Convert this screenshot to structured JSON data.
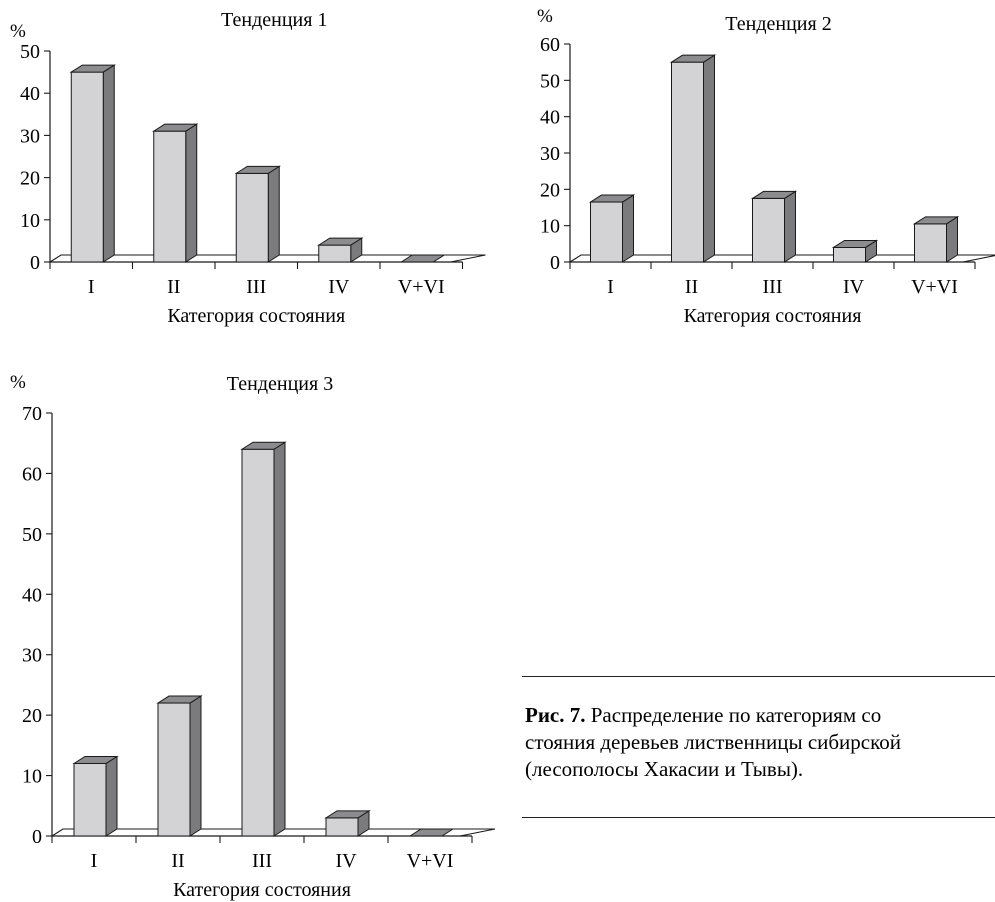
{
  "chart_data": [
    {
      "type": "bar",
      "title": "Тенденция 1",
      "ylabel": "%",
      "xlabel": "Категория состояния",
      "categories": [
        "I",
        "II",
        "III",
        "IV",
        "V+VI"
      ],
      "values": [
        45,
        31,
        21,
        4,
        0
      ],
      "ylim": [
        0,
        50
      ],
      "yticks": [
        "0",
        "10",
        "20",
        "30",
        "40",
        "50"
      ],
      "grid": false,
      "legend": "none"
    },
    {
      "type": "bar",
      "title": "Тенденция 2",
      "ylabel": "%",
      "xlabel": "Категория состояния",
      "categories": [
        "I",
        "II",
        "III",
        "IV",
        "V+VI"
      ],
      "values": [
        16.5,
        55,
        17.5,
        4,
        10.5
      ],
      "ylim": [
        0,
        60
      ],
      "yticks": [
        "0",
        "10",
        "20",
        "30",
        "40",
        "50",
        "60"
      ],
      "grid": false,
      "legend": "none"
    },
    {
      "type": "bar",
      "title": "Тенденция 3",
      "ylabel": "%",
      "xlabel": "Категория состояния",
      "categories": [
        "I",
        "II",
        "III",
        "IV",
        "V+VI"
      ],
      "values": [
        12,
        22,
        64,
        3,
        0
      ],
      "ylim": [
        0,
        70
      ],
      "yticks": [
        "0",
        "10",
        "20",
        "30",
        "40",
        "50",
        "60",
        "70"
      ],
      "grid": false,
      "legend": "none"
    }
  ],
  "caption": {
    "label": "Рис. 7.",
    "text": " Распределение по категориям со\nстояния деревьев лиственницы сибирской\n(лесополосы Хакасии и Тывы)."
  },
  "colors": {
    "bar_front": "#d3d3d5",
    "bar_side": "#7b7b7d",
    "bar_top": "#8c8c8e",
    "axis": "#1a1a1a",
    "floor": "#ffffff"
  }
}
